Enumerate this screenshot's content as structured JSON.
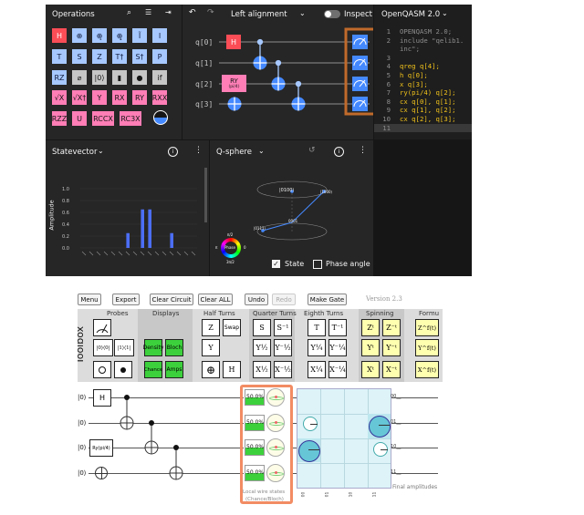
{
  "composer": {
    "operations_title": "Operations",
    "gate_rows": [
      [
        {
          "label": "H",
          "style": "gred"
        },
        {
          "label": "⊕",
          "style": "gblue"
        },
        {
          "label": "⊕̥",
          "style": "gblue"
        },
        {
          "label": "⊕̥̥",
          "style": "gblue"
        },
        {
          "label": "Ĩ",
          "style": "gblue"
        },
        {
          "label": "I",
          "style": "gblue"
        }
      ],
      [
        {
          "label": "T",
          "style": "gblue"
        },
        {
          "label": "S",
          "style": "gblue"
        },
        {
          "label": "Z",
          "style": "gblue"
        },
        {
          "label": "T†",
          "style": "gblue"
        },
        {
          "label": "S†",
          "style": "gblue"
        },
        {
          "label": "P",
          "style": "gblue"
        }
      ],
      [
        {
          "label": "RZ",
          "style": "gblue"
        },
        {
          "label": "⌀",
          "style": "ggray"
        },
        {
          "label": "|0⟩",
          "style": "ggray"
        },
        {
          "label": "▮",
          "style": "ggray"
        },
        {
          "label": "●",
          "style": "ggray"
        },
        {
          "label": "if",
          "style": "ggray"
        }
      ],
      [
        {
          "label": "√X",
          "style": "gpink"
        },
        {
          "label": "√X†",
          "style": "gpink"
        },
        {
          "label": "Y",
          "style": "gpink"
        },
        {
          "label": "RX",
          "style": "gpink"
        },
        {
          "label": "RY",
          "style": "gpink"
        },
        {
          "label": "RXX",
          "style": "gpink"
        }
      ],
      [
        {
          "label": "RZZ",
          "style": "gpink"
        },
        {
          "label": "U",
          "style": "gpink"
        },
        {
          "label": "RCCX",
          "style": "gpink"
        },
        {
          "label": "RC3X",
          "style": "gpink"
        }
      ]
    ],
    "alignment": "Left alignment",
    "inspect_label": "Inspect",
    "qubits": [
      "q[0]",
      "q[1]",
      "q[2]",
      "q[3]"
    ],
    "ry_gate_label": "RY",
    "ry_gate_param": "(pi/4)",
    "h_gate_label": "H",
    "code_header": "OpenQASM 2.0",
    "code_lines": [
      {
        "n": "1",
        "t": "OPENQASM 2.0;"
      },
      {
        "n": "2",
        "t": "include \"qelib1."
      },
      {
        "n": "",
        "t": "inc\";"
      },
      {
        "n": "3",
        "t": ""
      },
      {
        "n": "4",
        "t": "qreg q[4];"
      },
      {
        "n": "5",
        "t": "h q[0];"
      },
      {
        "n": "6",
        "t": "x q[3];"
      },
      {
        "n": "7",
        "t": "ry(pi/4) q[2];"
      },
      {
        "n": "8",
        "t": "cx q[0], q[1];"
      },
      {
        "n": "9",
        "t": "cx q[1], q[2];"
      },
      {
        "n": "10",
        "t": "cx q[2], q[3];"
      },
      {
        "n": "11",
        "t": ""
      }
    ],
    "statevector_title": "Statevector",
    "qsphere_title": "Q-sphere",
    "amplitude_label": "Amplitude",
    "amp_ticks": [
      "1.0",
      "0.8",
      "0.6",
      "0.4",
      "0.2",
      "0.0"
    ],
    "amp_values": [
      0,
      0,
      0,
      0,
      0,
      0,
      0.25,
      0,
      0.65,
      0.65,
      0,
      0,
      0.25,
      0,
      0,
      0
    ],
    "qs_label_1": "|0100⟩",
    "qs_label_2": "|1000⟩",
    "qs_label_3": "0001",
    "qs_label_4": "|0111⟩",
    "phase_label": "Phase",
    "phase_pi2": "π/2",
    "phase_3pi2": "3π/2",
    "phase_pi": "π",
    "phase_0": "0",
    "state_label": "State",
    "phase_angle_label": "Phase angle"
  },
  "quirk": {
    "menu": "Menu",
    "export": "Export",
    "clear_circuit": "Clear Circuit",
    "clear_all": "Clear ALL",
    "undo": "Undo",
    "redo": "Redo",
    "make_gate": "Make Gate",
    "version": "Version 2.3",
    "toolbox": "Toolbox",
    "groups": [
      "Probes",
      "Displays",
      "Half Turns",
      "Quarter Turns",
      "Eighth Turns",
      "Spinning",
      "Formu"
    ],
    "display_density": "Density",
    "display_bloch": "Bloch",
    "display_chance": "Chance",
    "display_amps": "Amps",
    "probe_labels": [
      "|0⟩⟨0|",
      "|1⟩⟨1|"
    ],
    "half_turns": [
      "Z",
      "Swap",
      "Y",
      "H"
    ],
    "quarter_turns": [
      "S",
      "S⁻¹",
      "Y½",
      "Y⁻½",
      "X½",
      "X⁻½"
    ],
    "eighth_turns": [
      "T",
      "T⁻¹",
      "Y¼",
      "Y⁻¼",
      "X¼",
      "X⁻¼"
    ],
    "spinning": [
      "Zᵗ",
      "Z⁻ᵗ",
      "Yᵗ",
      "Y⁻ᵗ",
      "Xᵗ",
      "X⁻ᵗ"
    ],
    "formula": [
      "Z^f(t)",
      "Y^f(t)",
      "X^f(t)"
    ],
    "wire_kets": [
      "|0⟩",
      "|0⟩",
      "|0⟩",
      "|0⟩"
    ],
    "h_gate": "H",
    "ry_gate": "Ry(pi/4)",
    "chances": [
      "50.0%",
      "50.0%",
      "50.0%",
      "50.0%"
    ],
    "amp_row_labels": [
      "00__",
      "01__",
      "10__",
      "11__"
    ],
    "local_states_1": "Local wire states",
    "local_states_2": "(Chance/Bloch)",
    "final_amplitudes": "Final amplitudes",
    "col_labels": [
      "00",
      "01",
      "10",
      "11"
    ],
    "accent": "#f28c63"
  }
}
